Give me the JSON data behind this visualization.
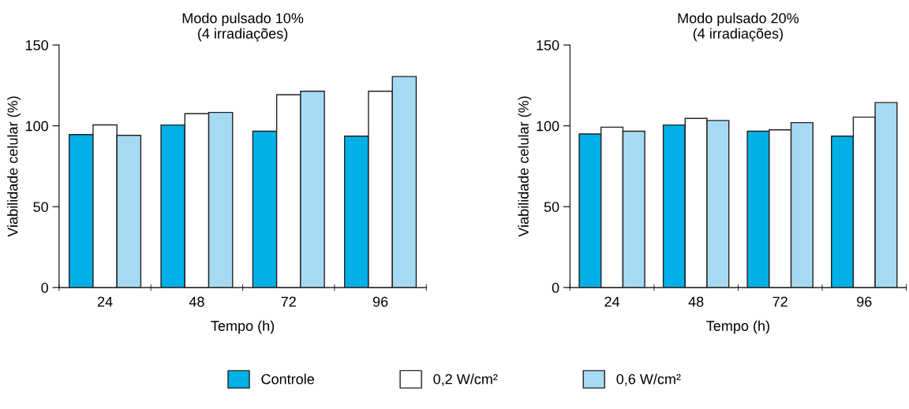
{
  "chart_data": [
    {
      "type": "bar",
      "title": "Modo pulsado 10%\n(4 irradiações)",
      "xlabel": "Tempo (h)",
      "ylabel": "Viabilidade celular (%)",
      "categories": [
        "24",
        "48",
        "72",
        "96"
      ],
      "ylim": [
        0,
        150
      ],
      "yticks": [
        0,
        50,
        100,
        150
      ],
      "legend": "bottom",
      "series": [
        {
          "name": "Controle",
          "color": "#00b0e6",
          "values": [
            94.6,
            100.5,
            96.7,
            93.6
          ]
        },
        {
          "name": "0,2 W/cm²",
          "color": "#ffffff",
          "values": [
            100.6,
            107.5,
            119.2,
            121.4
          ]
        },
        {
          "name": "0,6 W/cm²",
          "color": "#a6daf2",
          "values": [
            94.1,
            108.3,
            121.4,
            130.5
          ]
        }
      ]
    },
    {
      "type": "bar",
      "title": "Modo pulsado 20%\n(4 irradiações)",
      "xlabel": "Tempo (h)",
      "ylabel": "Viabilidade celular (%)",
      "categories": [
        "24",
        "48",
        "72",
        "96"
      ],
      "ylim": [
        0,
        150
      ],
      "yticks": [
        0,
        50,
        100,
        150
      ],
      "series": [
        {
          "color": "#00b0e6",
          "values": [
            95.0,
            100.5,
            96.7,
            93.6
          ]
        },
        {
          "color": "#ffffff",
          "values": [
            99.2,
            104.6,
            97.5,
            105.4
          ]
        },
        {
          "color": "#a6daf2",
          "values": [
            96.7,
            103.3,
            102.0,
            114.4
          ]
        }
      ]
    }
  ]
}
